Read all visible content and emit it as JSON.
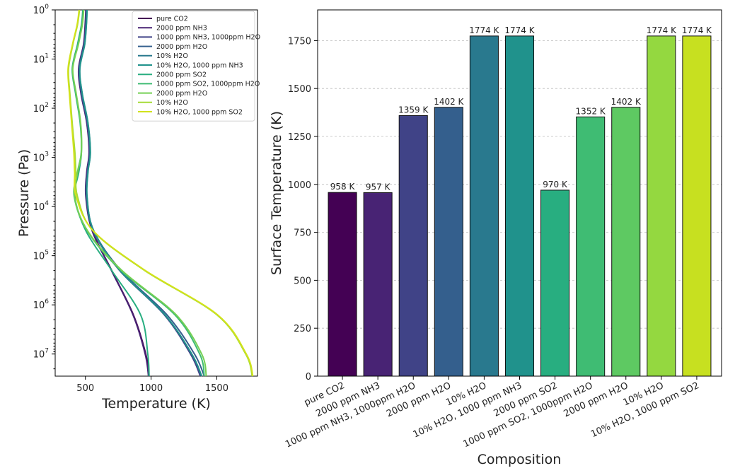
{
  "chart_data": [
    {
      "type": "line",
      "xlabel": "Temperature (K)",
      "ylabel": "Pressure (Pa)",
      "xlim": [
        270,
        1810
      ],
      "ylim_log10": [
        0,
        7.45
      ],
      "y_scale": "log",
      "y_inverted": true,
      "xticks": [
        "500",
        "1000",
        "1500"
      ],
      "yticks": [
        {
          "base": "10",
          "exp": "0"
        },
        {
          "base": "10",
          "exp": "1"
        },
        {
          "base": "10",
          "exp": "2"
        },
        {
          "base": "10",
          "exp": "3"
        },
        {
          "base": "10",
          "exp": "4"
        },
        {
          "base": "10",
          "exp": "5"
        },
        {
          "base": "10",
          "exp": "6"
        },
        {
          "base": "10",
          "exp": "7"
        }
      ],
      "legend_position": "top-right",
      "series": [
        {
          "name": "pure CO2",
          "color": "#440154",
          "temperature": [
            505,
            500,
            488,
            450,
            468,
            512,
            530,
            512,
            505,
            555,
            700,
            865,
            960,
            985
          ],
          "log10_pressure": [
            0,
            0.3,
            0.7,
            1.2,
            1.7,
            2.3,
            2.9,
            3.3,
            3.8,
            4.5,
            5.3,
            6.2,
            7.0,
            7.45
          ]
        },
        {
          "name": "2000 ppm NH3",
          "color": "#482374",
          "temperature": [
            503,
            498,
            486,
            448,
            466,
            510,
            528,
            510,
            503,
            552,
            698,
            862,
            955,
            980
          ],
          "log10_pressure": [
            0,
            0.3,
            0.7,
            1.2,
            1.7,
            2.3,
            2.9,
            3.3,
            3.8,
            4.5,
            5.3,
            6.2,
            7.0,
            7.45
          ]
        },
        {
          "name": "1000 ppm NH3, 1000ppm H2O",
          "color": "#404387",
          "temperature": [
            507,
            502,
            490,
            452,
            470,
            514,
            532,
            514,
            507,
            560,
            760,
            1100,
            1300,
            1375
          ],
          "log10_pressure": [
            0,
            0.3,
            0.7,
            1.2,
            1.7,
            2.3,
            2.9,
            3.3,
            3.8,
            4.5,
            5.3,
            6.2,
            7.0,
            7.45
          ]
        },
        {
          "name": "2000 ppm H2O",
          "color": "#345f8d",
          "temperature": [
            510,
            505,
            492,
            455,
            473,
            517,
            535,
            517,
            510,
            565,
            770,
            1120,
            1330,
            1405
          ],
          "log10_pressure": [
            0,
            0.3,
            0.7,
            1.2,
            1.7,
            2.3,
            2.9,
            3.3,
            3.8,
            4.5,
            5.3,
            6.2,
            7.0,
            7.45
          ]
        },
        {
          "name": "10% H2O",
          "color": "#29798e",
          "temperature": [
            512,
            507,
            494,
            457,
            475,
            519,
            537,
            519,
            512,
            563,
            762,
            1105,
            1310,
            1385
          ],
          "log10_pressure": [
            0,
            0.3,
            0.7,
            1.2,
            1.7,
            2.3,
            2.9,
            3.3,
            3.8,
            4.5,
            5.3,
            6.2,
            7.0,
            7.45
          ]
        },
        {
          "name": "10% H2O, 1000 ppm NH3",
          "color": "#20928c",
          "temperature": [
            513,
            508,
            495,
            458,
            476,
            520,
            538,
            520,
            513,
            563,
            763,
            1105,
            1310,
            1385
          ],
          "log10_pressure": [
            0,
            0.3,
            0.7,
            1.2,
            1.7,
            2.3,
            2.9,
            3.3,
            3.8,
            4.5,
            5.3,
            6.2,
            7.0,
            7.45
          ]
        },
        {
          "name": "2000 ppm SO2",
          "color": "#28ae80",
          "temperature": [
            480,
            470,
            440,
            400,
            425,
            460,
            470,
            450,
            420,
            505,
            700,
            920,
            975,
            985
          ],
          "log10_pressure": [
            0,
            0.3,
            0.7,
            1.2,
            1.7,
            2.3,
            2.9,
            3.3,
            3.8,
            4.5,
            5.3,
            6.2,
            7.0,
            7.45
          ]
        },
        {
          "name": "1000 ppm SO2, 1000ppm H2O",
          "color": "#3fbc73",
          "temperature": [
            485,
            475,
            445,
            402,
            428,
            462,
            468,
            440,
            415,
            515,
            770,
            1180,
            1370,
            1405
          ],
          "log10_pressure": [
            0,
            0.3,
            0.7,
            1.2,
            1.7,
            2.3,
            2.9,
            3.3,
            3.8,
            4.5,
            5.3,
            6.2,
            7.0,
            7.45
          ]
        },
        {
          "name": "2000 ppm H2O",
          "color": "#75d054",
          "temperature": [
            487,
            477,
            447,
            404,
            430,
            464,
            470,
            442,
            417,
            518,
            778,
            1190,
            1385,
            1420
          ],
          "log10_pressure": [
            0,
            0.3,
            0.7,
            1.2,
            1.7,
            2.3,
            2.9,
            3.3,
            3.8,
            4.5,
            5.3,
            6.2,
            7.0,
            7.45
          ]
        },
        {
          "name": "10% H2O",
          "color": "#a5db36",
          "temperature": [
            455,
            440,
            405,
            372,
            382,
            400,
            420,
            428,
            440,
            560,
            950,
            1500,
            1720,
            1770
          ],
          "log10_pressure": [
            0,
            0.3,
            0.7,
            1.2,
            1.7,
            2.3,
            2.9,
            3.3,
            3.8,
            4.5,
            5.3,
            6.2,
            7.0,
            7.45
          ]
        },
        {
          "name": "10% H2O, 1000 ppm SO2",
          "color": "#d2e21b",
          "temperature": [
            452,
            437,
            402,
            368,
            378,
            395,
            412,
            418,
            430,
            562,
            955,
            1505,
            1725,
            1775
          ],
          "log10_pressure": [
            0,
            0.3,
            0.7,
            1.2,
            1.7,
            2.3,
            2.9,
            3.3,
            3.8,
            4.5,
            5.3,
            6.2,
            7.0,
            7.45
          ]
        }
      ]
    },
    {
      "type": "bar",
      "xlabel": "Composition",
      "ylabel": "Surface Temperature (K)",
      "ylim": [
        0,
        1910
      ],
      "yticks": [
        "0",
        "250",
        "500",
        "750",
        "1000",
        "1250",
        "1500",
        "1750"
      ],
      "grid": "y-dashed",
      "categories": [
        "pure CO2",
        "2000 ppm NH3",
        "1000 ppm NH3, 1000ppm H2O",
        "2000 ppm H2O",
        "10% H2O",
        "10% H2O, 1000 ppm NH3",
        "2000 ppm SO2",
        "1000 ppm SO2, 1000ppm H2O",
        "2000 ppm H2O",
        "10% H2O",
        "10% H2O, 1000 ppm SO2"
      ],
      "values": [
        958,
        957,
        1359,
        1402,
        1774,
        1774,
        970,
        1352,
        1402,
        1774,
        1774
      ],
      "value_labels": [
        "958 K",
        "957 K",
        "1359 K",
        "1402 K",
        "1774 K",
        "1774 K",
        "970 K",
        "1352 K",
        "1402 K",
        "1774 K",
        "1774 K"
      ],
      "colors": [
        "#440154",
        "#482374",
        "#404387",
        "#345f8d",
        "#29798e",
        "#20928c",
        "#28ae80",
        "#3fbc73",
        "#5ec962",
        "#94d840",
        "#c7e020"
      ]
    }
  ]
}
